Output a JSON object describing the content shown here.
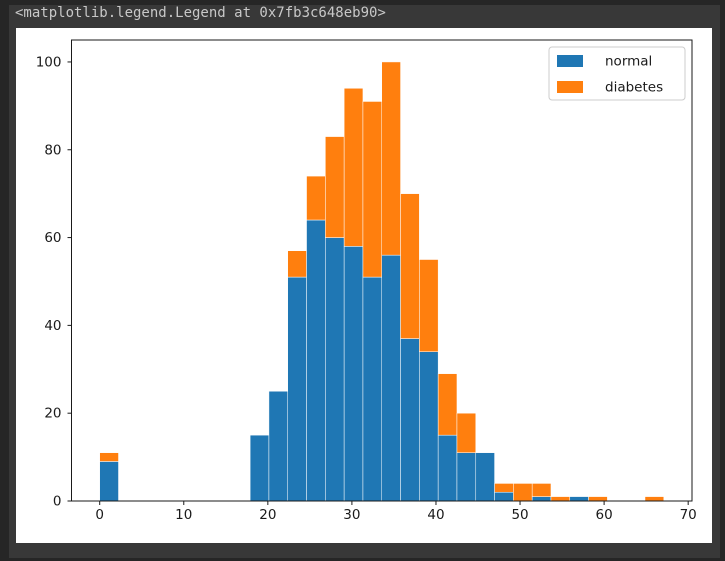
{
  "window": {
    "background_color": "#383838",
    "frame_color": "#262626",
    "repr_output": "<matplotlib.legend.Legend at 0x7fb3c648eb90>",
    "repr_text_color": "#c8c8c8"
  },
  "figure": {
    "background_color": "#ffffff",
    "spine_color": "#1a1a1a",
    "tick_label_color": "#262626"
  },
  "chart_data": {
    "type": "bar",
    "subtype": "stacked-histogram",
    "title": "",
    "xlabel": "",
    "ylabel": "",
    "bins": {
      "start": 0,
      "width": 2.2366667,
      "count": 30,
      "range": [
        0,
        67.1
      ]
    },
    "xlim": [
      -3.355,
      70.455
    ],
    "ylim": [
      0,
      105
    ],
    "xticks": [
      0,
      10,
      20,
      30,
      40,
      50,
      60,
      70
    ],
    "yticks": [
      0,
      20,
      40,
      60,
      80,
      100
    ],
    "grid": false,
    "legend": {
      "position": "upper-right",
      "frame_color": "#cccccc",
      "entries": [
        "normal",
        "diabetes"
      ]
    },
    "series": [
      {
        "name": "normal",
        "color": "#1f77b4",
        "values": [
          9,
          0,
          0,
          0,
          0,
          0,
          0,
          0,
          15,
          25,
          51,
          64,
          60,
          58,
          51,
          56,
          37,
          34,
          15,
          11,
          11,
          2,
          0,
          1,
          0,
          1,
          0,
          0,
          0,
          0
        ]
      },
      {
        "name": "diabetes",
        "color": "#ff7f0e",
        "values": [
          2,
          0,
          0,
          0,
          0,
          0,
          0,
          0,
          0,
          0,
          6,
          10,
          23,
          36,
          40,
          44,
          33,
          21,
          14,
          9,
          0,
          2,
          4,
          3,
          1,
          0,
          1,
          0,
          0,
          1
        ]
      }
    ]
  }
}
